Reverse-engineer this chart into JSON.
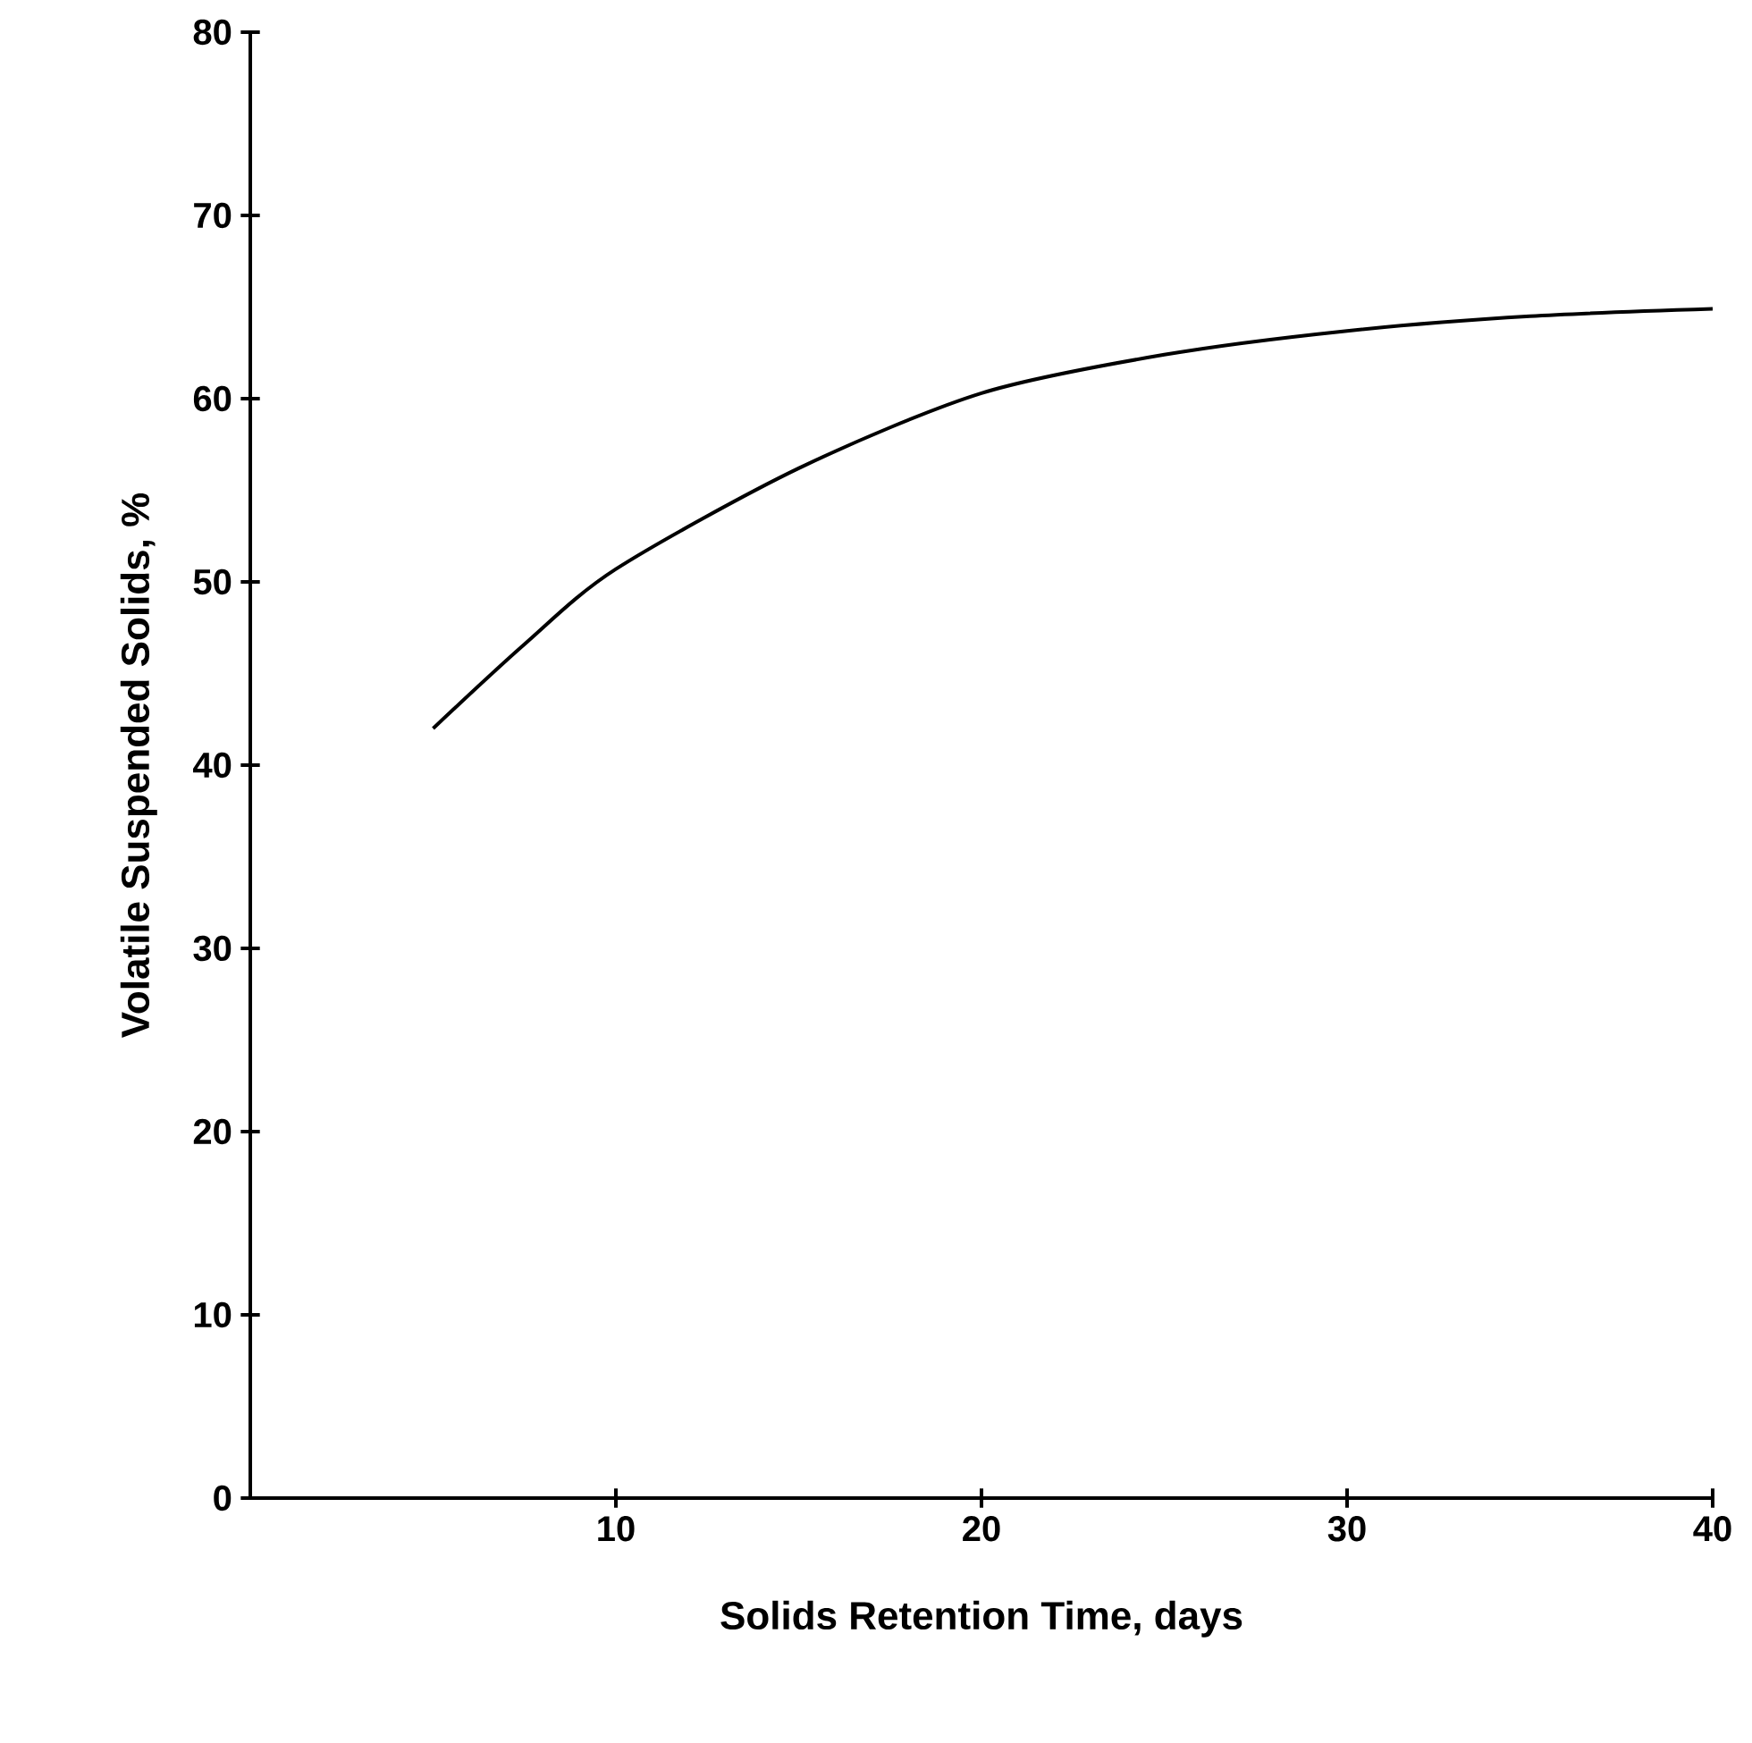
{
  "chart_data": {
    "type": "line",
    "xlabel": "Solids Retention Time, days",
    "ylabel": "Volatile Suspended Solids, %",
    "x": [
      5,
      7.5,
      10,
      15,
      20,
      25,
      30,
      35,
      40
    ],
    "values": [
      42,
      46.6,
      50.7,
      56.2,
      60.3,
      62.4,
      63.7,
      64.5,
      64.9
    ],
    "color": "#000000",
    "xlim": [
      0,
      40
    ],
    "xticks": [
      10,
      20,
      30,
      40
    ],
    "ylim": [
      0,
      80
    ],
    "yticks": [
      0,
      10,
      20,
      30,
      40,
      50,
      60,
      70,
      80
    ]
  }
}
